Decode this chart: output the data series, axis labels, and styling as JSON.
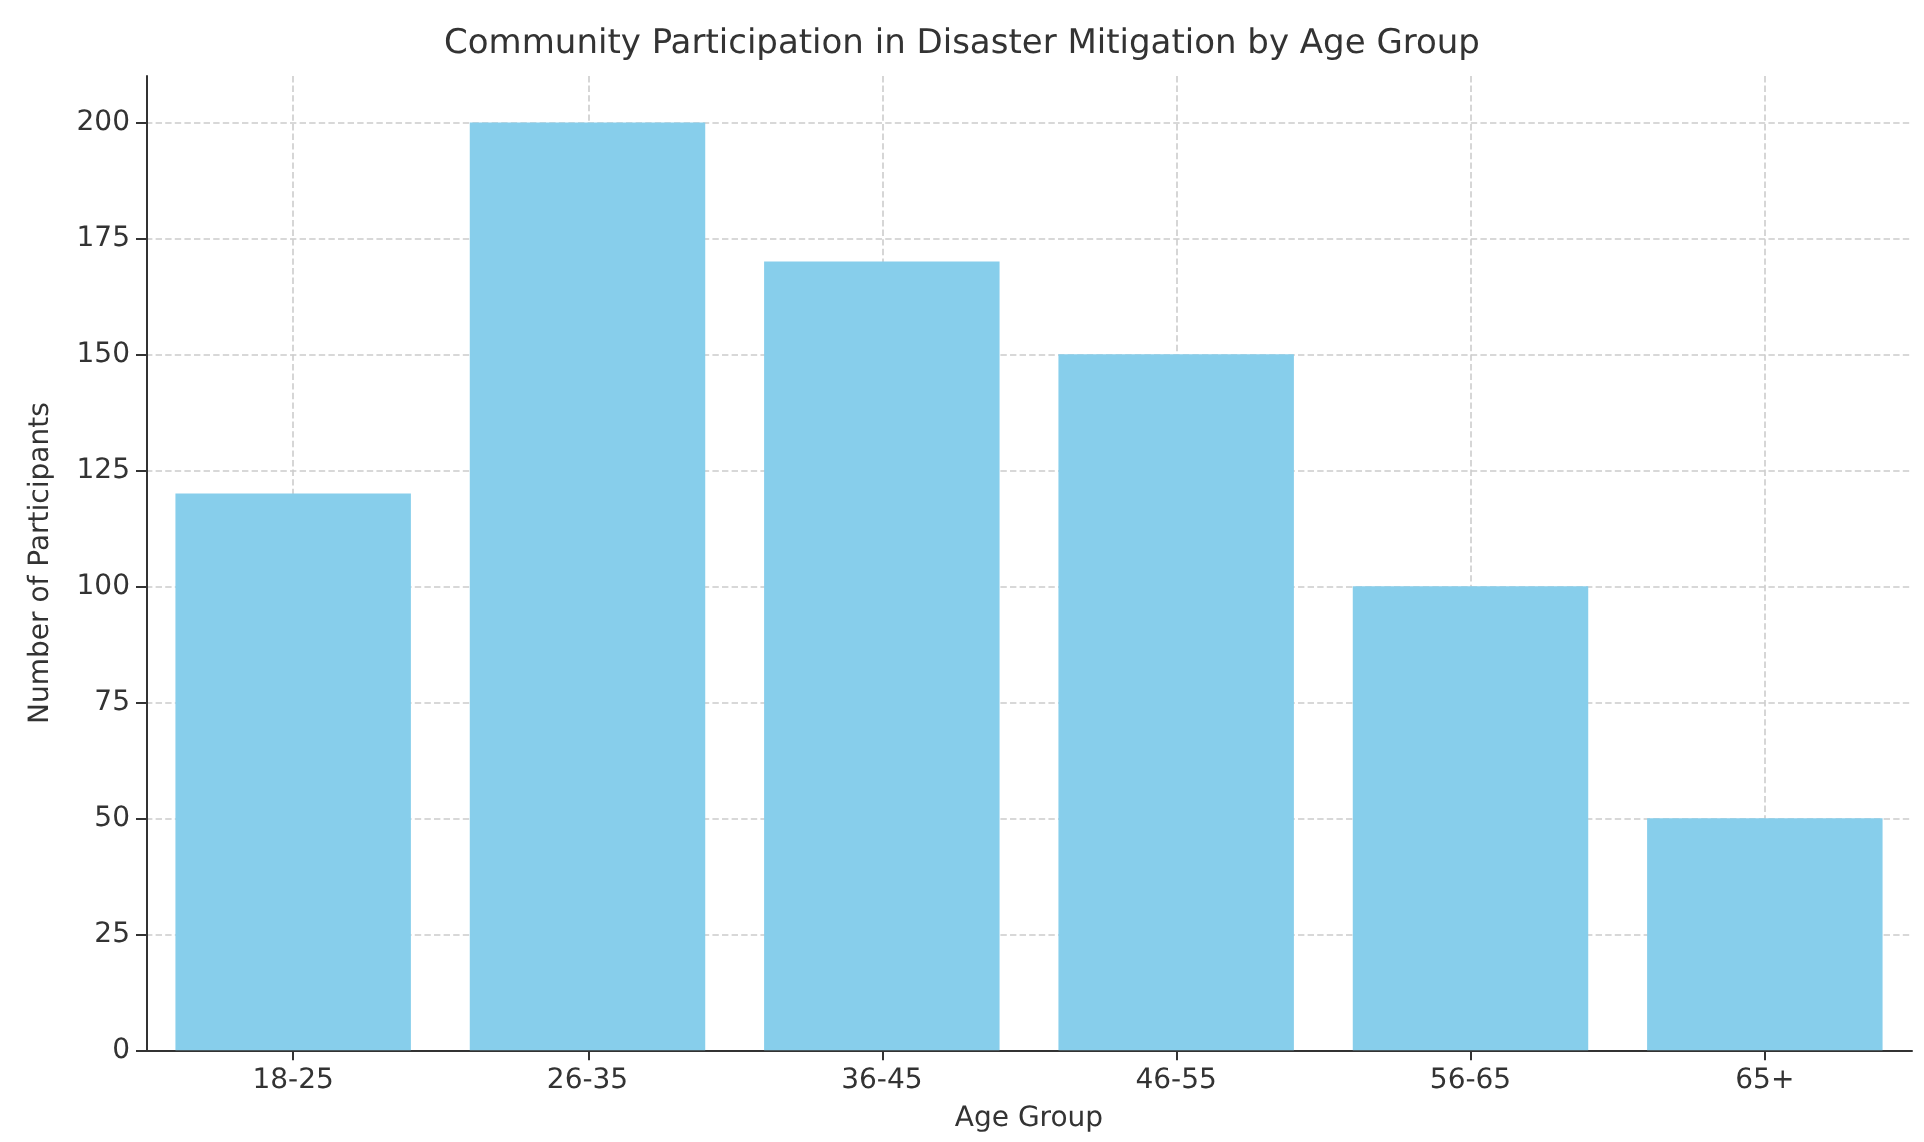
{
  "chart_data": {
    "type": "bar",
    "title": "Community Participation in Disaster Mitigation by Age Group",
    "xlabel": "Age Group",
    "ylabel": "Number of Participants",
    "categories": [
      "18-25",
      "26-35",
      "36-45",
      "46-55",
      "56-65",
      "65+"
    ],
    "values": [
      120,
      200,
      170,
      150,
      100,
      50
    ],
    "color": "#87ceeb",
    "ylim": [
      0,
      210
    ],
    "yticks": [
      0,
      25,
      50,
      75,
      100,
      125,
      150,
      175,
      200
    ],
    "grid": true
  }
}
